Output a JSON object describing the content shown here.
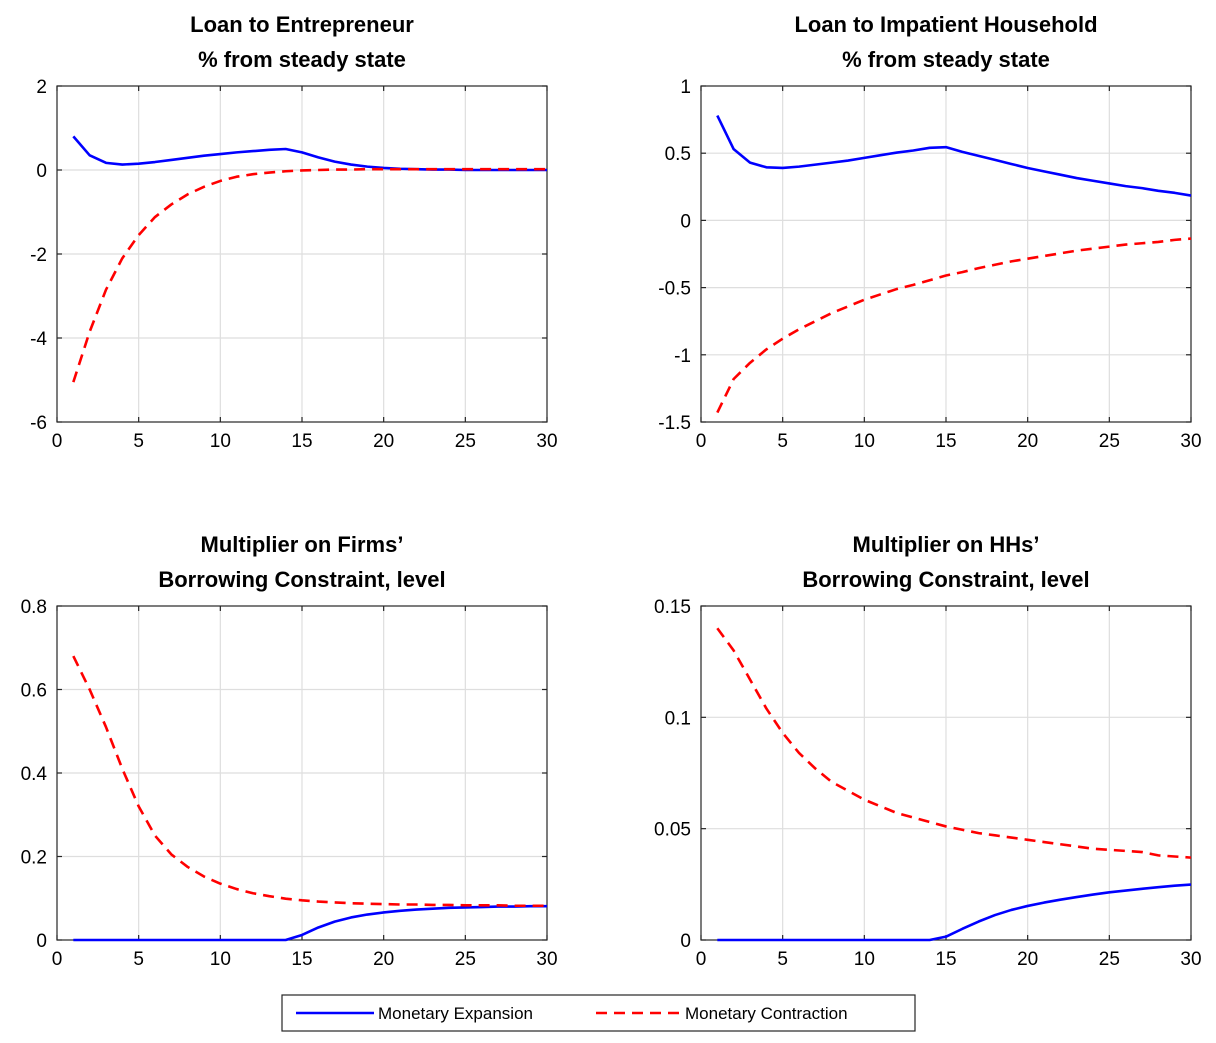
{
  "chart_data": [
    {
      "type": "line",
      "title": [
        "Loan to Entrepreneur",
        "% from steady state"
      ],
      "xlim": [
        0,
        30
      ],
      "ylim": [
        -6,
        2
      ],
      "xticks": [
        0,
        5,
        10,
        15,
        20,
        25,
        30
      ],
      "yticks": [
        -6,
        -4,
        -2,
        0,
        2
      ],
      "ytick_labels": [
        "-6",
        "-4",
        "-2",
        "0",
        "2"
      ],
      "grid": true,
      "x": [
        1,
        2,
        3,
        4,
        5,
        6,
        7,
        8,
        9,
        10,
        11,
        12,
        13,
        14,
        15,
        16,
        17,
        18,
        19,
        20,
        21,
        22,
        23,
        24,
        25,
        26,
        27,
        28,
        29,
        30
      ],
      "series": [
        {
          "name": "Monetary Expansion",
          "color": "#0000ff",
          "dash": "solid",
          "values": [
            0.8,
            0.35,
            0.17,
            0.13,
            0.15,
            0.19,
            0.24,
            0.29,
            0.34,
            0.38,
            0.42,
            0.45,
            0.48,
            0.5,
            0.42,
            0.3,
            0.2,
            0.13,
            0.08,
            0.05,
            0.03,
            0.02,
            0.01,
            0.01,
            0.0,
            0.0,
            0.0,
            0.0,
            0.0,
            0.0
          ]
        },
        {
          "name": "Monetary Contraction",
          "color": "#ff0000",
          "dash": "dashed",
          "values": [
            -5.05,
            -3.85,
            -2.85,
            -2.1,
            -1.55,
            -1.12,
            -0.82,
            -0.58,
            -0.4,
            -0.26,
            -0.16,
            -0.1,
            -0.06,
            -0.03,
            -0.01,
            0.0,
            0.01,
            0.01,
            0.02,
            0.02,
            0.02,
            0.02,
            0.02,
            0.02,
            0.02,
            0.02,
            0.02,
            0.02,
            0.02,
            0.02
          ]
        }
      ]
    },
    {
      "type": "line",
      "title": [
        "Loan to Impatient Household",
        "% from steady state"
      ],
      "xlim": [
        0,
        30
      ],
      "ylim": [
        -1.5,
        1
      ],
      "xticks": [
        0,
        5,
        10,
        15,
        20,
        25,
        30
      ],
      "yticks": [
        -1.5,
        -1,
        -0.5,
        0,
        0.5,
        1
      ],
      "ytick_labels": [
        "-1.5",
        "-1",
        "-0.5",
        "0",
        "0.5",
        "1"
      ],
      "grid": true,
      "x": [
        1,
        2,
        3,
        4,
        5,
        6,
        7,
        8,
        9,
        10,
        11,
        12,
        13,
        14,
        15,
        16,
        17,
        18,
        19,
        20,
        21,
        22,
        23,
        24,
        25,
        26,
        27,
        28,
        29,
        30
      ],
      "series": [
        {
          "name": "Monetary Expansion",
          "color": "#0000ff",
          "dash": "solid",
          "values": [
            0.78,
            0.53,
            0.43,
            0.395,
            0.39,
            0.4,
            0.415,
            0.43,
            0.445,
            0.465,
            0.485,
            0.505,
            0.52,
            0.54,
            0.545,
            0.51,
            0.48,
            0.45,
            0.42,
            0.39,
            0.365,
            0.34,
            0.315,
            0.295,
            0.275,
            0.255,
            0.24,
            0.22,
            0.205,
            0.185
          ]
        },
        {
          "name": "Monetary Contraction",
          "color": "#ff0000",
          "dash": "dashed",
          "values": [
            -1.43,
            -1.18,
            -1.06,
            -0.96,
            -0.88,
            -0.81,
            -0.75,
            -0.69,
            -0.64,
            -0.59,
            -0.55,
            -0.51,
            -0.48,
            -0.445,
            -0.41,
            -0.385,
            -0.355,
            -0.33,
            -0.305,
            -0.285,
            -0.265,
            -0.245,
            -0.225,
            -0.21,
            -0.195,
            -0.18,
            -0.17,
            -0.16,
            -0.145,
            -0.135
          ]
        }
      ]
    },
    {
      "type": "line",
      "title": [
        "Multiplier on Firms’",
        "Borrowing Constraint, level"
      ],
      "xlim": [
        0,
        30
      ],
      "ylim": [
        0,
        0.8
      ],
      "xticks": [
        0,
        5,
        10,
        15,
        20,
        25,
        30
      ],
      "yticks": [
        0,
        0.2,
        0.4,
        0.6,
        0.8
      ],
      "ytick_labels": [
        "0",
        "0.2",
        "0.4",
        "0.6",
        "0.8"
      ],
      "grid": true,
      "x": [
        1,
        2,
        3,
        4,
        5,
        6,
        7,
        8,
        9,
        10,
        11,
        12,
        13,
        14,
        15,
        16,
        17,
        18,
        19,
        20,
        21,
        22,
        23,
        24,
        25,
        26,
        27,
        28,
        29,
        30
      ],
      "series": [
        {
          "name": "Monetary Expansion",
          "color": "#0000ff",
          "dash": "solid",
          "values": [
            0,
            0,
            0,
            0,
            0,
            0,
            0,
            0,
            0,
            0,
            0,
            0,
            0,
            0,
            0.012,
            0.03,
            0.044,
            0.054,
            0.061,
            0.066,
            0.07,
            0.073,
            0.075,
            0.077,
            0.078,
            0.079,
            0.08,
            0.08,
            0.081,
            0.081
          ]
        },
        {
          "name": "Monetary Contraction",
          "color": "#ff0000",
          "dash": "dashed",
          "values": [
            0.68,
            0.6,
            0.51,
            0.41,
            0.32,
            0.25,
            0.205,
            0.175,
            0.152,
            0.135,
            0.122,
            0.112,
            0.105,
            0.099,
            0.095,
            0.092,
            0.09,
            0.088,
            0.087,
            0.086,
            0.085,
            0.085,
            0.084,
            0.084,
            0.083,
            0.083,
            0.083,
            0.082,
            0.082,
            0.082
          ]
        }
      ]
    },
    {
      "type": "line",
      "title": [
        "Multiplier on HHs’",
        "Borrowing Constraint, level"
      ],
      "xlim": [
        0,
        30
      ],
      "ylim": [
        0,
        0.15
      ],
      "xticks": [
        0,
        5,
        10,
        15,
        20,
        25,
        30
      ],
      "yticks": [
        0,
        0.05,
        0.1,
        0.15
      ],
      "ytick_labels": [
        "0",
        "0.05",
        "0.1",
        "0.15"
      ],
      "grid": true,
      "x": [
        1,
        2,
        3,
        4,
        5,
        6,
        7,
        8,
        9,
        10,
        11,
        12,
        13,
        14,
        15,
        16,
        17,
        18,
        19,
        20,
        21,
        22,
        23,
        24,
        25,
        26,
        27,
        28,
        29,
        30
      ],
      "series": [
        {
          "name": "Monetary Expansion",
          "color": "#0000ff",
          "dash": "solid",
          "values": [
            0,
            0,
            0,
            0,
            0,
            0,
            0,
            0,
            0,
            0,
            0,
            0,
            0,
            0,
            0.0015,
            0.005,
            0.0083,
            0.0112,
            0.0135,
            0.0153,
            0.0168,
            0.0181,
            0.0193,
            0.0204,
            0.0214,
            0.0222,
            0.023,
            0.0237,
            0.0244,
            0.0249
          ]
        },
        {
          "name": "Monetary Contraction",
          "color": "#ff0000",
          "dash": "dashed",
          "values": [
            0.14,
            0.13,
            0.117,
            0.104,
            0.093,
            0.084,
            0.077,
            0.071,
            0.067,
            0.063,
            0.06,
            0.057,
            0.055,
            0.053,
            0.051,
            0.0495,
            0.048,
            0.047,
            0.046,
            0.045,
            0.044,
            0.043,
            0.042,
            0.041,
            0.0405,
            0.04,
            0.0395,
            0.038,
            0.0375,
            0.037
          ]
        }
      ]
    }
  ],
  "legend": {
    "placement": "bottom-center",
    "entries": [
      {
        "label": "Monetary Expansion",
        "color": "#0000ff",
        "dash": "solid"
      },
      {
        "label": "Monetary Contraction",
        "color": "#ff0000",
        "dash": "dashed"
      }
    ]
  }
}
